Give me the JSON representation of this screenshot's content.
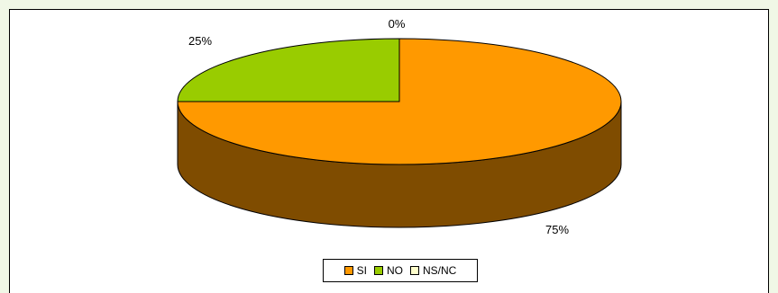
{
  "chart_data": {
    "type": "pie",
    "style": "3d",
    "categories": [
      "SI",
      "NO",
      "NS/NC"
    ],
    "values": [
      75,
      25,
      0
    ],
    "labels": [
      "75%",
      "25%",
      "0%"
    ],
    "colors": [
      "#ff9900",
      "#99cc00",
      "#ffffcc"
    ],
    "side_color": "#7f4c00",
    "legend_position": "bottom"
  }
}
